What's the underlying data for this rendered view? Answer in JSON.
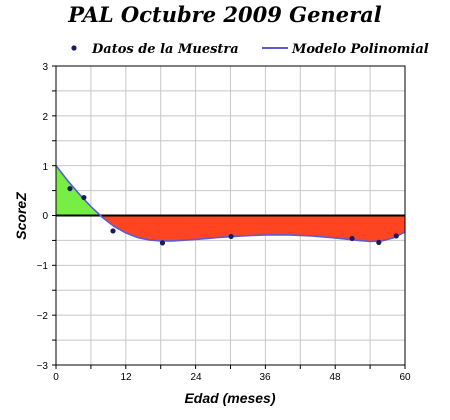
{
  "chart_data": {
    "type": "line",
    "title": "PAL Octubre 2009 General",
    "xlabel": "Edad (meses)",
    "ylabel": "ScoreZ",
    "xlim": [
      0,
      60
    ],
    "ylim": [
      -3,
      3
    ],
    "x_ticks": [
      "0",
      "12",
      "24",
      "36",
      "48",
      "60"
    ],
    "y_ticks": [
      "3",
      "2",
      "1",
      "0",
      "−1",
      "−2",
      "−3"
    ],
    "grid": true,
    "legend_position": "top",
    "series": [
      {
        "name": "Datos de la Muestra",
        "kind": "scatter",
        "color": "#1a1a5e",
        "points": [
          [
            2.4,
            0.54
          ],
          [
            4.8,
            0.36
          ],
          [
            9.8,
            -0.31
          ],
          [
            18.3,
            -0.55
          ],
          [
            30.1,
            -0.42
          ],
          [
            50.9,
            -0.46
          ],
          [
            55.5,
            -0.54
          ],
          [
            58.5,
            -0.41
          ]
        ]
      },
      {
        "name": "Modelo Polinomial",
        "kind": "line",
        "color": "#5b5bd6",
        "points": [
          [
            0,
            1.0
          ],
          [
            2,
            0.7
          ],
          [
            4,
            0.43
          ],
          [
            6,
            0.18
          ],
          [
            8,
            -0.04
          ],
          [
            10,
            -0.22
          ],
          [
            12,
            -0.35
          ],
          [
            14,
            -0.44
          ],
          [
            16,
            -0.49
          ],
          [
            18,
            -0.51
          ],
          [
            20,
            -0.51
          ],
          [
            24,
            -0.48
          ],
          [
            28,
            -0.44
          ],
          [
            32,
            -0.41
          ],
          [
            36,
            -0.39
          ],
          [
            40,
            -0.39
          ],
          [
            44,
            -0.41
          ],
          [
            48,
            -0.45
          ],
          [
            52,
            -0.5
          ],
          [
            54,
            -0.52
          ],
          [
            56,
            -0.51
          ],
          [
            58,
            -0.45
          ],
          [
            60,
            -0.33
          ]
        ]
      }
    ],
    "fill_above_zero_color": "#77ee44",
    "fill_below_zero_color": "#ff4422"
  }
}
